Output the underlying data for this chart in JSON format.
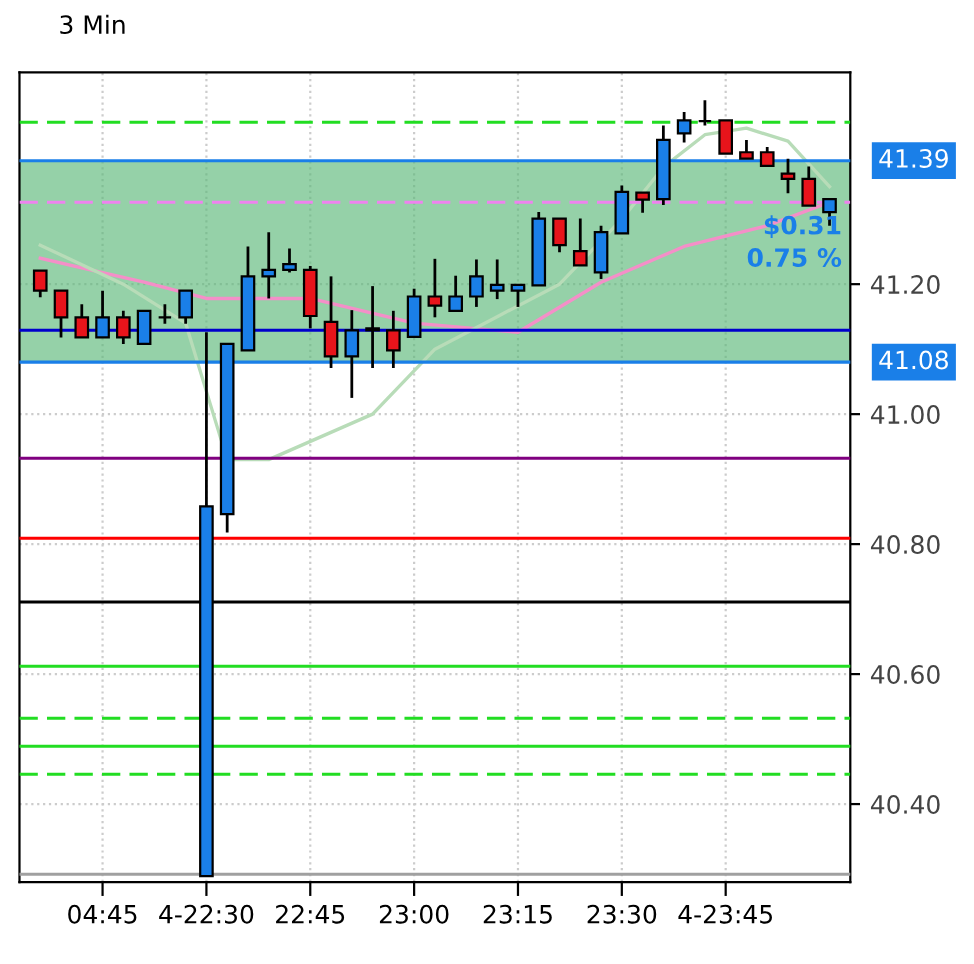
{
  "chart_data": {
    "type": "candlestick",
    "title": "3 Min",
    "categories": [
      null,
      null,
      null,
      "04:45",
      null,
      null,
      null,
      null,
      "4-22:30",
      null,
      null,
      null,
      null,
      "22:45",
      null,
      null,
      null,
      null,
      "23:00",
      null,
      null,
      null,
      null,
      "23:15",
      null,
      null,
      null,
      null,
      "23:30",
      null,
      null,
      null,
      null,
      "4-23:45",
      null,
      null,
      null,
      null,
      null
    ],
    "ohlc": [
      [
        41.221,
        41.221,
        41.18,
        41.19
      ],
      [
        41.19,
        41.19,
        41.118,
        41.149
      ],
      [
        41.149,
        41.169,
        41.118,
        41.118
      ],
      [
        41.118,
        41.19,
        41.118,
        41.149
      ],
      [
        41.149,
        41.159,
        41.108,
        41.118
      ],
      [
        41.108,
        41.159,
        41.108,
        41.159
      ],
      [
        41.149,
        41.169,
        41.139,
        41.149
      ],
      [
        41.149,
        41.19,
        41.139,
        41.19
      ],
      [
        40.289,
        41.126,
        40.289,
        40.858
      ],
      [
        40.846,
        41.108,
        40.818,
        41.108
      ],
      [
        41.098,
        41.258,
        41.098,
        41.212
      ],
      [
        41.212,
        41.28,
        41.178,
        41.222
      ],
      [
        41.222,
        41.255,
        41.218,
        41.231
      ],
      [
        41.222,
        41.228,
        41.132,
        41.151
      ],
      [
        41.142,
        41.212,
        41.071,
        41.089
      ],
      [
        41.089,
        41.16,
        41.025,
        41.129
      ],
      [
        41.129,
        41.197,
        41.071,
        41.132
      ],
      [
        41.129,
        41.159,
        41.071,
        41.098
      ],
      [
        41.119,
        41.193,
        41.119,
        41.181
      ],
      [
        41.181,
        41.239,
        41.149,
        41.167
      ],
      [
        41.159,
        41.213,
        41.159,
        41.181
      ],
      [
        41.181,
        41.238,
        41.165,
        41.212
      ],
      [
        41.19,
        41.238,
        41.177,
        41.199
      ],
      [
        41.19,
        41.199,
        41.165,
        41.199
      ],
      [
        41.198,
        41.311,
        41.198,
        41.301
      ],
      [
        41.301,
        41.301,
        41.249,
        41.26
      ],
      [
        41.251,
        41.301,
        41.229,
        41.229
      ],
      [
        41.218,
        41.29,
        41.208,
        41.28
      ],
      [
        41.278,
        41.352,
        41.278,
        41.342
      ],
      [
        41.341,
        41.341,
        41.31,
        41.33
      ],
      [
        41.331,
        41.444,
        41.322,
        41.422
      ],
      [
        41.432,
        41.465,
        41.418,
        41.452
      ],
      [
        41.451,
        41.483,
        41.444,
        41.451
      ],
      [
        41.452,
        41.452,
        41.401,
        41.401
      ],
      [
        41.403,
        41.422,
        41.393,
        41.393
      ],
      [
        41.403,
        41.411,
        41.382,
        41.382
      ],
      [
        41.37,
        41.393,
        41.34,
        41.362
      ],
      [
        41.362,
        41.381,
        41.321,
        41.321
      ],
      [
        41.311,
        41.331,
        41.29,
        41.331
      ]
    ],
    "colors": [
      "#e8141b",
      "#e8141b",
      "#e8141b",
      "#1a7fe8",
      "#e8141b",
      "#1a7fe8",
      "#000000",
      "#1a7fe8",
      "#1a7fe8",
      "#1a7fe8",
      "#1a7fe8",
      "#1a7fe8",
      "#1a7fe8",
      "#e8141b",
      "#e8141b",
      "#1a7fe8",
      "#1a7fe8",
      "#e8141b",
      "#1a7fe8",
      "#e8141b",
      "#1a7fe8",
      "#1a7fe8",
      "#1a7fe8",
      "#1a7fe8",
      "#1a7fe8",
      "#e8141b",
      "#e8141b",
      "#1a7fe8",
      "#1a7fe8",
      "#e8141b",
      "#1a7fe8",
      "#1a7fe8",
      "#000000",
      "#e8141b",
      "#e8141b",
      "#e8141b",
      "#e8141b",
      "#e8141b",
      "#1a7fe8"
    ],
    "series": [
      {
        "type": "line",
        "color": "#f48fc8",
        "values": [
          41.24,
          null,
          41.225,
          null,
          null,
          41.203,
          null,
          null,
          41.178,
          null,
          null,
          null,
          null,
          41.178,
          null,
          null,
          null,
          null,
          41.14,
          null,
          null,
          null,
          null,
          41.126,
          null,
          null,
          null,
          41.203,
          null,
          null,
          null,
          41.258,
          null,
          null,
          null,
          41.29,
          null,
          null,
          41.326
        ]
      },
      {
        "type": "line",
        "color": "#b8dcb8",
        "values": [
          41.26,
          null,
          null,
          null,
          41.2,
          null,
          null,
          41.14,
          null,
          40.93,
          null,
          40.93,
          null,
          null,
          null,
          null,
          41.0,
          null,
          null,
          41.1,
          null,
          null,
          41.15,
          null,
          null,
          41.2,
          null,
          null,
          41.3,
          null,
          41.38,
          null,
          41.43,
          null,
          41.44,
          null,
          41.42,
          null,
          41.35
        ]
      }
    ],
    "ylim": [
      40.28,
      41.526
    ],
    "yticks": [
      {
        "value": 40.4,
        "label": "40.40"
      },
      {
        "value": 40.6,
        "label": "40.60"
      },
      {
        "value": 40.8,
        "label": "40.80"
      },
      {
        "value": 41.0,
        "label": "41.00"
      },
      {
        "value": 41.2,
        "label": "41.20"
      }
    ],
    "grid": true,
    "ref_lines": [
      {
        "axis": "y",
        "value": 41.39,
        "label": "41.39",
        "color": "#1a7fe8"
      },
      {
        "axis": "y",
        "value": 41.08,
        "label": "41.08",
        "color": "#1a7fe8"
      },
      {
        "axis": "y",
        "value": 41.449,
        "color": "#22dd22",
        "line_style": "dashed"
      },
      {
        "axis": "y",
        "value": 41.326,
        "color": "#ee82ee",
        "line_style": "dashed"
      },
      {
        "axis": "y",
        "value": 41.129,
        "color": "#0000cc"
      },
      {
        "axis": "y",
        "value": 40.932,
        "color": "#800080"
      },
      {
        "axis": "y",
        "value": 40.809,
        "color": "#ff0000"
      },
      {
        "axis": "y",
        "value": 40.711,
        "color": "#000000"
      },
      {
        "axis": "y",
        "value": 40.612,
        "color": "#22dd22"
      },
      {
        "axis": "y",
        "value": 40.532,
        "color": "#22dd22",
        "line_style": "dashed"
      },
      {
        "axis": "y",
        "value": 40.489,
        "color": "#22dd22"
      },
      {
        "axis": "y",
        "value": 40.446,
        "color": "#22dd22",
        "line_style": "dashed"
      },
      {
        "axis": "y",
        "value": 40.292,
        "color": "#a0a0a0"
      }
    ],
    "bands": [
      {
        "axis": "y",
        "from": 41.08,
        "to": 41.39,
        "color": "#5cb87a"
      }
    ],
    "annotations": [
      "$0.31",
      "0.75 %"
    ]
  }
}
